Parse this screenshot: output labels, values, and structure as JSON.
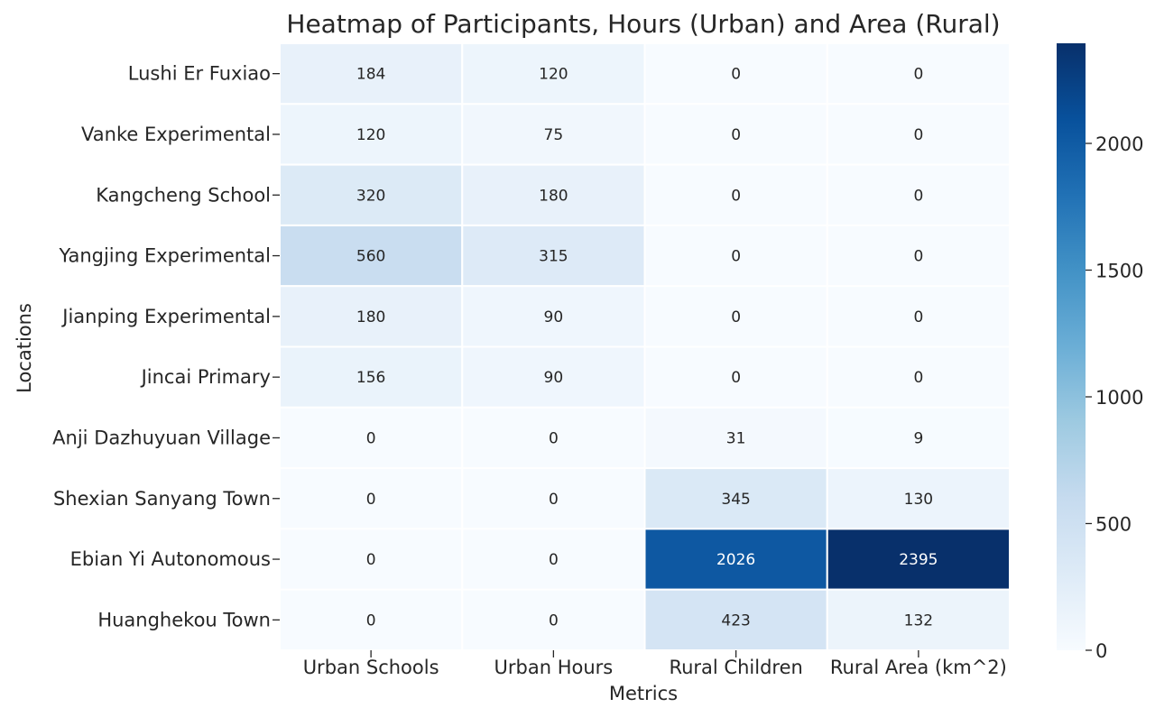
{
  "chart_data": {
    "type": "heatmap",
    "title": "Heatmap of Participants, Hours (Urban) and Area (Rural)",
    "xlabel": "Metrics",
    "ylabel": "Locations",
    "columns": [
      "Urban Schools",
      "Urban Hours",
      "Rural Children",
      "Rural Area (km^2)"
    ],
    "rows": [
      "Lushi Er Fuxiao",
      "Vanke Experimental",
      "Kangcheng School",
      "Yangjing Experimental",
      "Jianping Experimental",
      "Jincai Primary",
      "Anji Dazhuyuan Village",
      "Shexian Sanyang Town",
      "Ebian Yi Autonomous",
      "Huanghekou Town"
    ],
    "values": [
      [
        184,
        120,
        0,
        0
      ],
      [
        120,
        75,
        0,
        0
      ],
      [
        320,
        180,
        0,
        0
      ],
      [
        560,
        315,
        0,
        0
      ],
      [
        180,
        90,
        0,
        0
      ],
      [
        156,
        90,
        0,
        0
      ],
      [
        0,
        0,
        31,
        9
      ],
      [
        0,
        0,
        345,
        130
      ],
      [
        0,
        0,
        2026,
        2395
      ],
      [
        0,
        0,
        423,
        132
      ]
    ],
    "colormap": "Blues",
    "colorbar": {
      "min": 0,
      "max": 2395,
      "ticks": [
        0,
        500,
        1000,
        1500,
        2000
      ]
    },
    "annotations": true
  }
}
